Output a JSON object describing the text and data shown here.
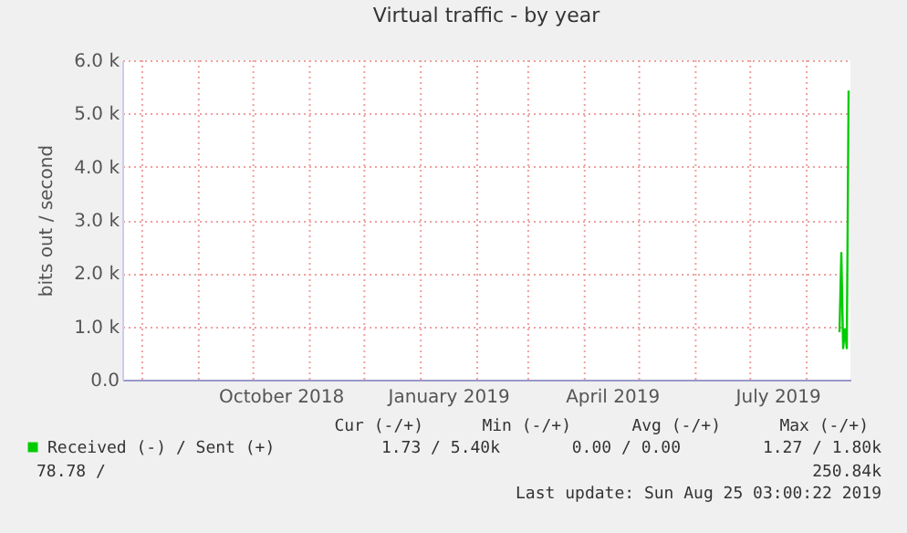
{
  "chart_data": {
    "type": "line",
    "title": "Virtual traffic - by year",
    "ylabel": "bits out / second",
    "x": [
      "2019-08-19",
      "2019-08-20",
      "2019-08-21",
      "2019-08-22",
      "2019-08-23",
      "2019-08-24"
    ],
    "series": [
      {
        "name": "Received (-) / Sent (+)",
        "color": "#00cc00",
        "values": [
          890,
          2380,
          590,
          950,
          590,
          5430
        ]
      }
    ],
    "xlim": [
      "2018-07-21",
      "2019-08-25"
    ],
    "xticks": [
      {
        "value": "2018-08-01",
        "label": null
      },
      {
        "value": "2018-09-01",
        "label": null
      },
      {
        "value": "2018-10-01",
        "label": null
      },
      {
        "value": "2018-10-16",
        "label": "October 2018"
      },
      {
        "value": "2018-11-01",
        "label": null
      },
      {
        "value": "2018-12-01",
        "label": null
      },
      {
        "value": "2019-01-01",
        "label": null
      },
      {
        "value": "2019-01-16",
        "label": "January 2019"
      },
      {
        "value": "2019-02-01",
        "label": null
      },
      {
        "value": "2019-03-01",
        "label": null
      },
      {
        "value": "2019-04-01",
        "label": null
      },
      {
        "value": "2019-04-16",
        "label": "April 2019"
      },
      {
        "value": "2019-05-01",
        "label": null
      },
      {
        "value": "2019-06-01",
        "label": null
      },
      {
        "value": "2019-07-01",
        "label": null
      },
      {
        "value": "2019-07-16",
        "label": "July 2019"
      },
      {
        "value": "2019-08-01",
        "label": null
      }
    ],
    "ylim": [
      0,
      6000
    ],
    "yticks": [
      {
        "value": 0,
        "label": "0.0"
      },
      {
        "value": 1000,
        "label": "1.0 k"
      },
      {
        "value": 2000,
        "label": "2.0 k"
      },
      {
        "value": 3000,
        "label": "3.0 k"
      },
      {
        "value": 4000,
        "label": "4.0 k"
      },
      {
        "value": 5000,
        "label": "5.0 k"
      },
      {
        "value": 6000,
        "label": "6.0 k"
      }
    ],
    "grid": true,
    "legend": "bottom",
    "annotations": [
      "Cur (-/+)",
      "Min (-/+)",
      "Avg (-/+)",
      "Max (-/+)",
      "1.73 /  5.40k",
      "0.00 /  0.00",
      "1.27 /  1.80k",
      "78.78 /",
      "250.84k",
      "Last update: Sun Aug 25 03:00:22 2019"
    ]
  }
}
